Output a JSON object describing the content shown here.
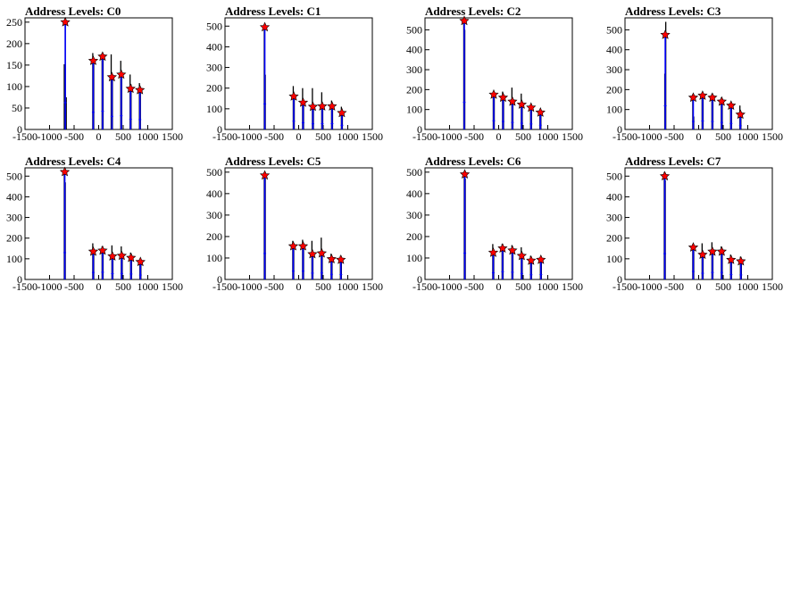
{
  "page": {
    "background": "#ffffff"
  },
  "style": {
    "line_color": "#0000ff",
    "spike_color": "#000000",
    "marker_color": "#ff0000",
    "axis_color": "#000000"
  },
  "chart_data": [
    {
      "type": "line",
      "title": "Address Levels: C0",
      "xlim": [
        -1500,
        1500
      ],
      "ylim": [
        0,
        260
      ],
      "xticks": [
        -1500,
        -1000,
        -500,
        0,
        500,
        1000,
        1500
      ],
      "yticks": [
        0,
        50,
        100,
        150,
        200,
        250
      ],
      "peaks": [
        {
          "x": -680,
          "y": 250
        },
        {
          "x": -110,
          "y": 160
        },
        {
          "x": 80,
          "y": 170
        },
        {
          "x": 270,
          "y": 122
        },
        {
          "x": 460,
          "y": 128
        },
        {
          "x": 650,
          "y": 95
        },
        {
          "x": 840,
          "y": 92
        }
      ],
      "spike_tops": [
        {
          "x": -700,
          "y": 152
        },
        {
          "x": -680,
          "y": 255
        },
        {
          "x": -660,
          "y": 75
        },
        {
          "x": -120,
          "y": 178
        },
        {
          "x": -100,
          "y": 165
        },
        {
          "x": 70,
          "y": 178
        },
        {
          "x": 90,
          "y": 172
        },
        {
          "x": 255,
          "y": 175
        },
        {
          "x": 280,
          "y": 120
        },
        {
          "x": 450,
          "y": 160
        },
        {
          "x": 470,
          "y": 130
        },
        {
          "x": 640,
          "y": 128
        },
        {
          "x": 660,
          "y": 105
        },
        {
          "x": 830,
          "y": 108
        },
        {
          "x": 850,
          "y": 90
        }
      ]
    },
    {
      "type": "line",
      "title": "Address Levels: C1",
      "xlim": [
        -1500,
        1500
      ],
      "ylim": [
        0,
        540
      ],
      "xticks": [
        -1500,
        -1000,
        -500,
        0,
        500,
        1000,
        1500
      ],
      "yticks": [
        0,
        100,
        200,
        300,
        400,
        500
      ],
      "peaks": [
        {
          "x": -690,
          "y": 495
        },
        {
          "x": -100,
          "y": 160
        },
        {
          "x": 90,
          "y": 130
        },
        {
          "x": 290,
          "y": 110
        },
        {
          "x": 480,
          "y": 112
        },
        {
          "x": 680,
          "y": 112
        },
        {
          "x": 880,
          "y": 80
        }
      ],
      "spike_tops": [
        {
          "x": -700,
          "y": 480
        },
        {
          "x": -680,
          "y": 265
        },
        {
          "x": -110,
          "y": 210
        },
        {
          "x": -90,
          "y": 150
        },
        {
          "x": 80,
          "y": 200
        },
        {
          "x": 100,
          "y": 140
        },
        {
          "x": 280,
          "y": 200
        },
        {
          "x": 300,
          "y": 120
        },
        {
          "x": 470,
          "y": 180
        },
        {
          "x": 490,
          "y": 120
        },
        {
          "x": 670,
          "y": 140
        },
        {
          "x": 690,
          "y": 110
        },
        {
          "x": 870,
          "y": 110
        },
        {
          "x": 890,
          "y": 90
        }
      ]
    },
    {
      "type": "line",
      "title": "Address Levels: C2",
      "xlim": [
        -1500,
        1500
      ],
      "ylim": [
        0,
        560
      ],
      "xticks": [
        -1500,
        -1000,
        -500,
        0,
        500,
        1000,
        1500
      ],
      "yticks": [
        0,
        100,
        200,
        300,
        400,
        500
      ],
      "peaks": [
        {
          "x": -700,
          "y": 545
        },
        {
          "x": -100,
          "y": 175
        },
        {
          "x": 90,
          "y": 160
        },
        {
          "x": 280,
          "y": 140
        },
        {
          "x": 470,
          "y": 125
        },
        {
          "x": 660,
          "y": 110
        },
        {
          "x": 850,
          "y": 85
        }
      ],
      "spike_tops": [
        {
          "x": -710,
          "y": 530
        },
        {
          "x": -690,
          "y": 500
        },
        {
          "x": -110,
          "y": 190
        },
        {
          "x": -90,
          "y": 170
        },
        {
          "x": 80,
          "y": 190
        },
        {
          "x": 100,
          "y": 165
        },
        {
          "x": 270,
          "y": 210
        },
        {
          "x": 290,
          "y": 150
        },
        {
          "x": 460,
          "y": 180
        },
        {
          "x": 480,
          "y": 130
        },
        {
          "x": 650,
          "y": 125
        },
        {
          "x": 670,
          "y": 110
        },
        {
          "x": 840,
          "y": 100
        },
        {
          "x": 860,
          "y": 85
        }
      ]
    },
    {
      "type": "line",
      "title": "Address Levels: C3",
      "xlim": [
        -1500,
        1500
      ],
      "ylim": [
        0,
        560
      ],
      "xticks": [
        -1500,
        -1000,
        -500,
        0,
        500,
        1000,
        1500
      ],
      "yticks": [
        0,
        100,
        200,
        300,
        400,
        500
      ],
      "peaks": [
        {
          "x": -680,
          "y": 475
        },
        {
          "x": -110,
          "y": 160
        },
        {
          "x": 80,
          "y": 170
        },
        {
          "x": 280,
          "y": 160
        },
        {
          "x": 470,
          "y": 140
        },
        {
          "x": 660,
          "y": 120
        },
        {
          "x": 850,
          "y": 75
        }
      ],
      "spike_tops": [
        {
          "x": -690,
          "y": 280
        },
        {
          "x": -670,
          "y": 540
        },
        {
          "x": -120,
          "y": 175
        },
        {
          "x": -100,
          "y": 65
        },
        {
          "x": 70,
          "y": 185
        },
        {
          "x": 90,
          "y": 160
        },
        {
          "x": 270,
          "y": 180
        },
        {
          "x": 290,
          "y": 150
        },
        {
          "x": 460,
          "y": 160
        },
        {
          "x": 480,
          "y": 130
        },
        {
          "x": 650,
          "y": 130
        },
        {
          "x": 670,
          "y": 110
        },
        {
          "x": 840,
          "y": 120
        },
        {
          "x": 860,
          "y": 70
        }
      ]
    },
    {
      "type": "line",
      "title": "Address Levels: C4",
      "xlim": [
        -1500,
        1500
      ],
      "ylim": [
        0,
        540
      ],
      "xticks": [
        -1500,
        -1000,
        -500,
        0,
        500,
        1000,
        1500
      ],
      "yticks": [
        0,
        100,
        200,
        300,
        400,
        500
      ],
      "peaks": [
        {
          "x": -690,
          "y": 520
        },
        {
          "x": -110,
          "y": 135
        },
        {
          "x": 80,
          "y": 140
        },
        {
          "x": 280,
          "y": 112
        },
        {
          "x": 470,
          "y": 115
        },
        {
          "x": 660,
          "y": 105
        },
        {
          "x": 850,
          "y": 85
        }
      ],
      "spike_tops": [
        {
          "x": -700,
          "y": 510
        },
        {
          "x": -680,
          "y": 470
        },
        {
          "x": -120,
          "y": 175
        },
        {
          "x": -100,
          "y": 130
        },
        {
          "x": 70,
          "y": 160
        },
        {
          "x": 90,
          "y": 140
        },
        {
          "x": 270,
          "y": 165
        },
        {
          "x": 290,
          "y": 120
        },
        {
          "x": 460,
          "y": 160
        },
        {
          "x": 480,
          "y": 120
        },
        {
          "x": 650,
          "y": 130
        },
        {
          "x": 670,
          "y": 100
        },
        {
          "x": 840,
          "y": 95
        },
        {
          "x": 860,
          "y": 80
        }
      ]
    },
    {
      "type": "line",
      "title": "Address Levels: C5",
      "xlim": [
        -1500,
        1500
      ],
      "ylim": [
        0,
        520
      ],
      "xticks": [
        -1500,
        -1000,
        -500,
        0,
        500,
        1000,
        1500
      ],
      "yticks": [
        0,
        100,
        200,
        300,
        400,
        500
      ],
      "peaks": [
        {
          "x": -690,
          "y": 485
        },
        {
          "x": -110,
          "y": 155
        },
        {
          "x": 90,
          "y": 155
        },
        {
          "x": 280,
          "y": 118
        },
        {
          "x": 470,
          "y": 122
        },
        {
          "x": 670,
          "y": 95
        },
        {
          "x": 860,
          "y": 92
        }
      ],
      "spike_tops": [
        {
          "x": -700,
          "y": 500
        },
        {
          "x": -680,
          "y": 470
        },
        {
          "x": -120,
          "y": 180
        },
        {
          "x": -100,
          "y": 150
        },
        {
          "x": 80,
          "y": 185
        },
        {
          "x": 100,
          "y": 150
        },
        {
          "x": 270,
          "y": 180
        },
        {
          "x": 290,
          "y": 120
        },
        {
          "x": 460,
          "y": 195
        },
        {
          "x": 480,
          "y": 125
        },
        {
          "x": 660,
          "y": 120
        },
        {
          "x": 680,
          "y": 95
        },
        {
          "x": 850,
          "y": 110
        },
        {
          "x": 870,
          "y": 90
        }
      ]
    },
    {
      "type": "line",
      "title": "Address Levels: C6",
      "xlim": [
        -1500,
        1500
      ],
      "ylim": [
        0,
        520
      ],
      "xticks": [
        -1500,
        -1000,
        -500,
        0,
        500,
        1000,
        1500
      ],
      "yticks": [
        0,
        100,
        200,
        300,
        400,
        500
      ],
      "peaks": [
        {
          "x": -690,
          "y": 490
        },
        {
          "x": -110,
          "y": 125
        },
        {
          "x": 80,
          "y": 145
        },
        {
          "x": 280,
          "y": 135
        },
        {
          "x": 470,
          "y": 110
        },
        {
          "x": 660,
          "y": 88
        },
        {
          "x": 860,
          "y": 92
        }
      ],
      "spike_tops": [
        {
          "x": -700,
          "y": 500
        },
        {
          "x": -680,
          "y": 470
        },
        {
          "x": -120,
          "y": 165
        },
        {
          "x": -100,
          "y": 110
        },
        {
          "x": 70,
          "y": 165
        },
        {
          "x": 90,
          "y": 140
        },
        {
          "x": 270,
          "y": 160
        },
        {
          "x": 290,
          "y": 130
        },
        {
          "x": 460,
          "y": 150
        },
        {
          "x": 480,
          "y": 105
        },
        {
          "x": 650,
          "y": 110
        },
        {
          "x": 670,
          "y": 88
        },
        {
          "x": 850,
          "y": 100
        },
        {
          "x": 870,
          "y": 90
        }
      ]
    },
    {
      "type": "line",
      "title": "Address Levels: C7",
      "xlim": [
        -1500,
        1500
      ],
      "ylim": [
        0,
        540
      ],
      "xticks": [
        -1500,
        -1000,
        -500,
        0,
        500,
        1000,
        1500
      ],
      "yticks": [
        0,
        100,
        200,
        300,
        400,
        500
      ],
      "peaks": [
        {
          "x": -690,
          "y": 500
        },
        {
          "x": -110,
          "y": 155
        },
        {
          "x": 80,
          "y": 120
        },
        {
          "x": 280,
          "y": 135
        },
        {
          "x": 470,
          "y": 135
        },
        {
          "x": 660,
          "y": 95
        },
        {
          "x": 860,
          "y": 88
        }
      ],
      "spike_tops": [
        {
          "x": -700,
          "y": 520
        },
        {
          "x": -680,
          "y": 480
        },
        {
          "x": -120,
          "y": 170
        },
        {
          "x": -100,
          "y": 150
        },
        {
          "x": 70,
          "y": 175
        },
        {
          "x": 90,
          "y": 115
        },
        {
          "x": 270,
          "y": 180
        },
        {
          "x": 290,
          "y": 130
        },
        {
          "x": 460,
          "y": 160
        },
        {
          "x": 480,
          "y": 130
        },
        {
          "x": 650,
          "y": 120
        },
        {
          "x": 670,
          "y": 95
        },
        {
          "x": 850,
          "y": 110
        },
        {
          "x": 870,
          "y": 85
        }
      ]
    }
  ]
}
